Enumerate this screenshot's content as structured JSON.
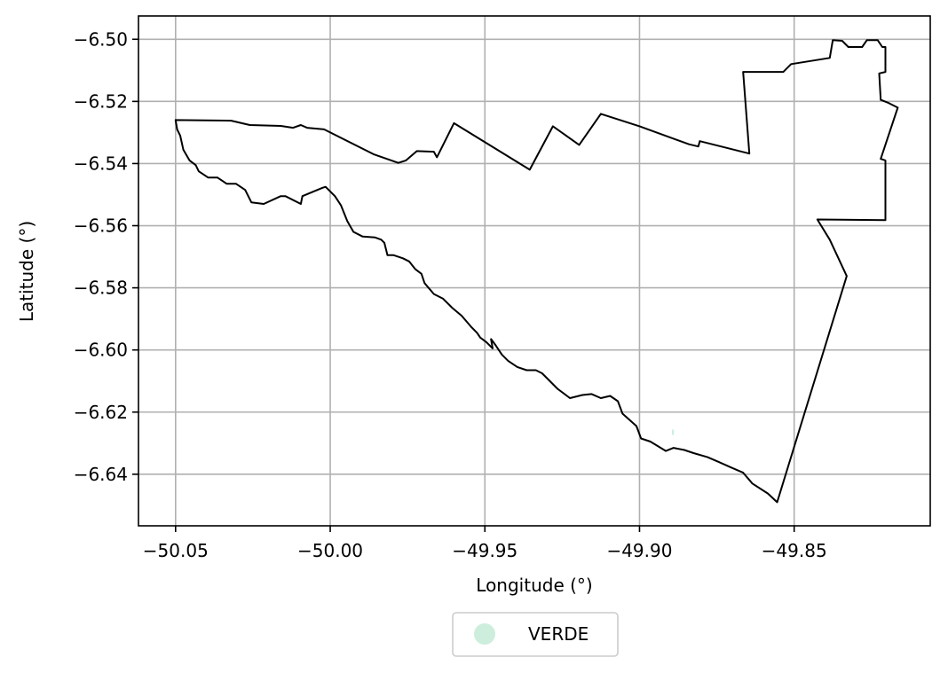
{
  "chart_data": {
    "type": "map",
    "xlabel": "Longitude (°)",
    "ylabel": "Latitude (°)",
    "xlim": [
      -50.062,
      -49.806
    ],
    "ylim": [
      -6.6566,
      -6.4925
    ],
    "xticks": [
      -50.05,
      -50.0,
      -49.95,
      -49.9,
      -49.85
    ],
    "xtick_labels": [
      "−50.05",
      "−50.00",
      "−49.95",
      "−49.90",
      "−49.85"
    ],
    "yticks": [
      -6.5,
      -6.52,
      -6.54,
      -6.56,
      -6.58,
      -6.6,
      -6.62,
      -6.64
    ],
    "ytick_labels": [
      "−6.50",
      "−6.52",
      "−6.54",
      "−6.56",
      "−6.58",
      "−6.60",
      "−6.62",
      "−6.64"
    ],
    "grid": true,
    "boundary": [
      [
        -50.05,
        -6.526
      ],
      [
        -50.032,
        -6.5262
      ],
      [
        -50.026,
        -6.5276
      ],
      [
        -50.016,
        -6.5279
      ],
      [
        -50.012,
        -6.5285
      ],
      [
        -50.0095,
        -6.5276
      ],
      [
        -50.0075,
        -6.5285
      ],
      [
        -50.002,
        -6.529
      ],
      [
        -49.986,
        -6.537
      ],
      [
        -49.978,
        -6.5398
      ],
      [
        -49.9755,
        -6.539
      ],
      [
        -49.972,
        -6.536
      ],
      [
        -49.9665,
        -6.5362
      ],
      [
        -49.9655,
        -6.538
      ],
      [
        -49.96,
        -6.527
      ],
      [
        -49.9355,
        -6.542
      ],
      [
        -49.928,
        -6.528
      ],
      [
        -49.9195,
        -6.534
      ],
      [
        -49.9125,
        -6.524
      ],
      [
        -49.9,
        -6.528
      ],
      [
        -49.884,
        -6.5338
      ],
      [
        -49.881,
        -6.5345
      ],
      [
        -49.8805,
        -6.5328
      ],
      [
        -49.8645,
        -6.5368
      ],
      [
        -49.8665,
        -6.5105
      ],
      [
        -49.8535,
        -6.5105
      ],
      [
        -49.851,
        -6.508
      ],
      [
        -49.8385,
        -6.506
      ],
      [
        -49.8375,
        -6.5003
      ],
      [
        -49.8345,
        -6.5005
      ],
      [
        -49.8325,
        -6.5025
      ],
      [
        -49.828,
        -6.5025
      ],
      [
        -49.8265,
        -6.5003
      ],
      [
        -49.823,
        -6.5003
      ],
      [
        -49.8215,
        -6.5025
      ],
      [
        -49.8205,
        -6.5025
      ],
      [
        -49.8205,
        -6.5105
      ],
      [
        -49.8225,
        -6.511
      ],
      [
        -49.822,
        -6.5195
      ],
      [
        -49.8195,
        -6.5205
      ],
      [
        -49.8165,
        -6.522
      ],
      [
        -49.822,
        -6.5385
      ],
      [
        -49.8205,
        -6.539
      ],
      [
        -49.8205,
        -6.5582
      ],
      [
        -49.8425,
        -6.558
      ],
      [
        -49.8385,
        -6.5645
      ],
      [
        -49.833,
        -6.5762
      ],
      [
        -49.8555,
        -6.649
      ],
      [
        -49.8585,
        -6.6462
      ],
      [
        -49.8635,
        -6.643
      ],
      [
        -49.8665,
        -6.6395
      ],
      [
        -49.8705,
        -6.6378
      ],
      [
        -49.8745,
        -6.636
      ],
      [
        -49.878,
        -6.6345
      ],
      [
        -49.8825,
        -6.6332
      ],
      [
        -49.8855,
        -6.6322
      ],
      [
        -49.889,
        -6.6315
      ],
      [
        -49.8915,
        -6.6325
      ],
      [
        -49.8965,
        -6.6295
      ],
      [
        -49.8995,
        -6.6285
      ],
      [
        -49.901,
        -6.6245
      ],
      [
        -49.9055,
        -6.6205
      ],
      [
        -49.907,
        -6.6165
      ],
      [
        -49.9095,
        -6.6148
      ],
      [
        -49.9125,
        -6.6155
      ],
      [
        -49.9155,
        -6.6142
      ],
      [
        -49.9185,
        -6.6145
      ],
      [
        -49.9225,
        -6.6155
      ],
      [
        -49.9265,
        -6.6125
      ],
      [
        -49.9295,
        -6.6095
      ],
      [
        -49.9315,
        -6.6075
      ],
      [
        -49.9335,
        -6.6065
      ],
      [
        -49.9365,
        -6.6065
      ],
      [
        -49.9395,
        -6.6055
      ],
      [
        -49.9425,
        -6.6035
      ],
      [
        -49.9445,
        -6.6015
      ],
      [
        -49.9465,
        -6.5985
      ],
      [
        -49.948,
        -6.5965
      ],
      [
        -49.9475,
        -6.5995
      ],
      [
        -49.9495,
        -6.5975
      ],
      [
        -49.9515,
        -6.596
      ],
      [
        -49.9525,
        -6.5945
      ],
      [
        -49.9545,
        -6.5925
      ],
      [
        -49.9575,
        -6.589
      ],
      [
        -49.9605,
        -6.5865
      ],
      [
        -49.9635,
        -6.5835
      ],
      [
        -49.9665,
        -6.582
      ],
      [
        -49.9695,
        -6.5785
      ],
      [
        -49.9705,
        -6.5755
      ],
      [
        -49.9725,
        -6.574
      ],
      [
        -49.9745,
        -6.5715
      ],
      [
        -49.9765,
        -6.5705
      ],
      [
        -49.9795,
        -6.5695
      ],
      [
        -49.9815,
        -6.5695
      ],
      [
        -49.9825,
        -6.5655
      ],
      [
        -49.9835,
        -6.5645
      ],
      [
        -49.9855,
        -6.5638
      ],
      [
        -49.9895,
        -6.5635
      ],
      [
        -49.9925,
        -6.562
      ],
      [
        -49.9945,
        -6.5585
      ],
      [
        -49.9965,
        -6.5535
      ],
      [
        -49.9985,
        -6.5505
      ],
      [
        -50.0005,
        -6.5485
      ],
      [
        -50.0015,
        -6.5475
      ],
      [
        -50.0025,
        -6.5478
      ],
      [
        -50.009,
        -6.5505
      ],
      [
        -50.0095,
        -6.553
      ],
      [
        -50.0145,
        -6.5505
      ],
      [
        -50.016,
        -6.5505
      ],
      [
        -50.0215,
        -6.553
      ],
      [
        -50.0255,
        -6.5525
      ],
      [
        -50.0275,
        -6.5485
      ],
      [
        -50.0305,
        -6.5465
      ],
      [
        -50.0335,
        -6.5465
      ],
      [
        -50.0365,
        -6.5445
      ],
      [
        -50.0395,
        -6.5445
      ],
      [
        -50.0425,
        -6.5425
      ],
      [
        -50.0435,
        -6.5405
      ],
      [
        -50.0455,
        -6.539
      ],
      [
        -50.0475,
        -6.5355
      ],
      [
        -50.0485,
        -6.531
      ],
      [
        -50.0495,
        -6.529
      ],
      [
        -50.05,
        -6.526
      ]
    ],
    "points": [
      [
        -49.8892,
        -6.6265
      ]
    ],
    "legend": {
      "entries": [
        {
          "label": "VERDE",
          "color": "#cdeedd"
        }
      ],
      "placement": "bottom-center"
    }
  }
}
